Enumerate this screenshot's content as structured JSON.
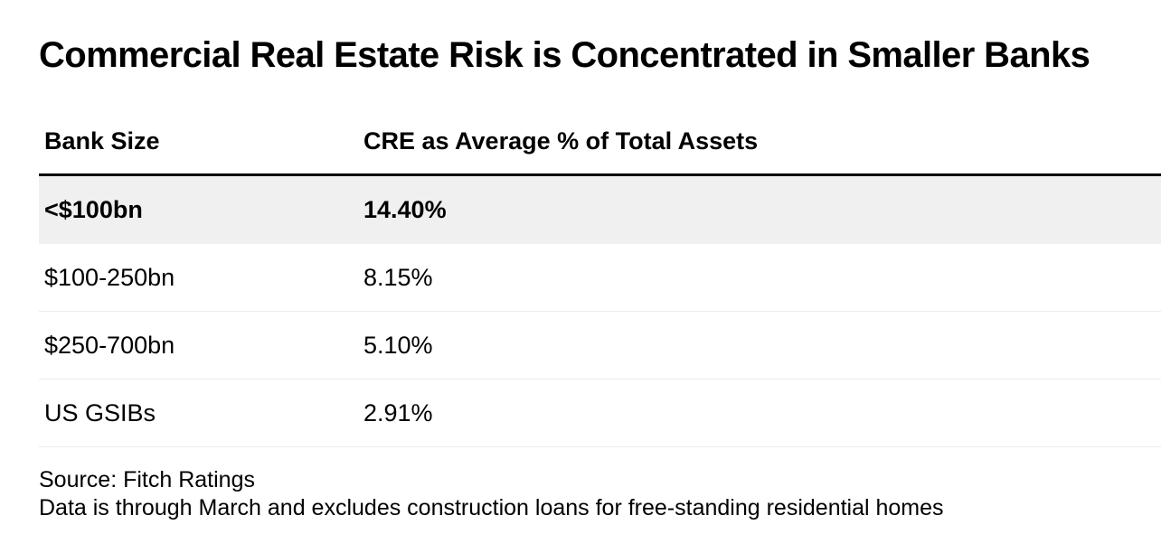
{
  "chart_data": {
    "type": "table",
    "title": "Commercial Real Estate Risk is Concentrated in Smaller Banks",
    "columns": [
      "Bank Size",
      "CRE as Average % of Total Assets"
    ],
    "categories": [
      "<$100bn",
      "$100-250bn",
      "$250-700bn",
      "US GSIBs"
    ],
    "values": [
      14.4,
      8.15,
      5.1,
      2.91
    ],
    "unit": "%",
    "rows": [
      {
        "bank_size": "<$100bn",
        "cre_pct": "14.40%",
        "highlight": true
      },
      {
        "bank_size": "$100-250bn",
        "cre_pct": "8.15%",
        "highlight": false
      },
      {
        "bank_size": "$250-700bn",
        "cre_pct": "5.10%",
        "highlight": false
      },
      {
        "bank_size": "US GSIBs",
        "cre_pct": "2.91%",
        "highlight": false
      }
    ],
    "source": "Source: Fitch Ratings",
    "note": "Data is through March and excludes construction loans for free-standing residential homes"
  },
  "colors": {
    "text": "#000000",
    "highlight_row": "#f0f0f0",
    "header_rule": "#000000",
    "row_divider": "#ececec"
  }
}
